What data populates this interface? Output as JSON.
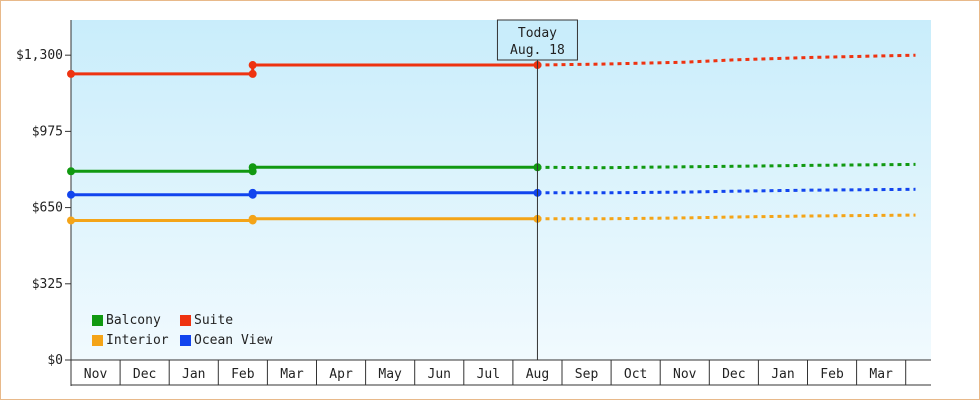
{
  "chart_data": {
    "type": "line",
    "today": {
      "label": "Today",
      "date": "Aug. 18"
    },
    "y_ticks": [
      "$0",
      "$325",
      "$650",
      "$975",
      "$1,300"
    ],
    "ylim": [
      0,
      1450
    ],
    "x_months": [
      "Nov",
      "Dec",
      "Jan",
      "Feb",
      "Mar",
      "Apr",
      "May",
      "Jun",
      "Jul",
      "Aug",
      "Sep",
      "Oct",
      "Nov",
      "Dec",
      "Jan",
      "Feb",
      "Mar"
    ],
    "grid": false,
    "legend_position": "bottom-left",
    "series": [
      {
        "name": "Suite",
        "color": "#ee3311",
        "history": [
          [
            0,
            1220
          ],
          [
            3.7,
            1220
          ],
          [
            3.7,
            1258
          ],
          [
            9.5,
            1258
          ]
        ],
        "forecast": [
          [
            9.5,
            1258
          ],
          [
            10.8,
            1262
          ],
          [
            12.5,
            1270
          ],
          [
            13.5,
            1280
          ],
          [
            15,
            1290
          ],
          [
            17.2,
            1300
          ]
        ]
      },
      {
        "name": "Balcony",
        "color": "#119911",
        "history": [
          [
            0,
            805
          ],
          [
            3.7,
            805
          ],
          [
            3.7,
            822
          ],
          [
            9.5,
            822
          ]
        ],
        "forecast": [
          [
            9.5,
            822
          ],
          [
            10.8,
            820
          ],
          [
            12.5,
            824
          ],
          [
            13.5,
            826
          ],
          [
            15,
            830
          ],
          [
            17.2,
            834
          ]
        ]
      },
      {
        "name": "Ocean View",
        "color": "#1144ee",
        "history": [
          [
            0,
            705
          ],
          [
            3.7,
            705
          ],
          [
            3.7,
            713
          ],
          [
            9.5,
            713
          ]
        ],
        "forecast": [
          [
            9.5,
            713
          ],
          [
            10.8,
            713
          ],
          [
            12.5,
            716
          ],
          [
            13.5,
            720
          ],
          [
            15,
            724
          ],
          [
            17.2,
            728
          ]
        ]
      },
      {
        "name": "Interior",
        "color": "#f4a418",
        "history": [
          [
            0,
            595
          ],
          [
            3.7,
            595
          ],
          [
            3.7,
            602
          ],
          [
            9.5,
            602
          ]
        ],
        "forecast": [
          [
            9.5,
            602
          ],
          [
            10.8,
            602
          ],
          [
            12.5,
            606
          ],
          [
            13.5,
            610
          ],
          [
            15,
            614
          ],
          [
            17.2,
            618
          ]
        ]
      }
    ],
    "legend": [
      {
        "name": "Balcony",
        "color": "#119911"
      },
      {
        "name": "Suite",
        "color": "#ee3311"
      },
      {
        "name": "Interior",
        "color": "#f4a418"
      },
      {
        "name": "Ocean View",
        "color": "#1144ee"
      }
    ]
  }
}
